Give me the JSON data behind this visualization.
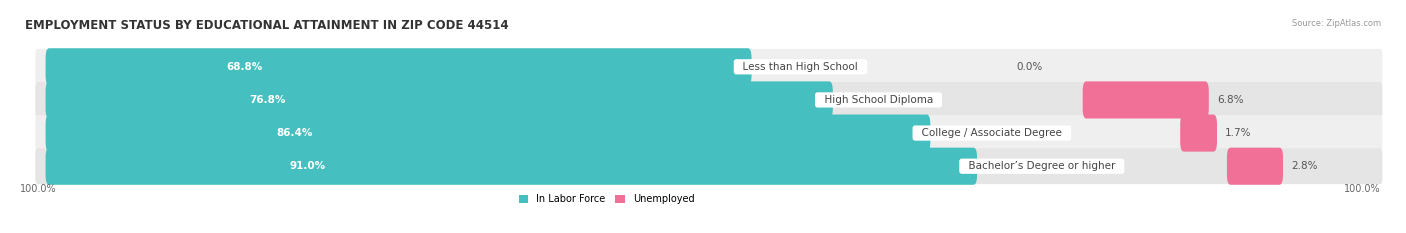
{
  "title": "EMPLOYMENT STATUS BY EDUCATIONAL ATTAINMENT IN ZIP CODE 44514",
  "source": "Source: ZipAtlas.com",
  "categories": [
    "Less than High School",
    "High School Diploma",
    "College / Associate Degree",
    "Bachelor’s Degree or higher"
  ],
  "labor_force": [
    68.8,
    76.8,
    86.4,
    91.0
  ],
  "unemployed": [
    0.0,
    6.8,
    1.7,
    2.8
  ],
  "labor_force_color": "#45bfbf",
  "unemployed_color": "#f07098",
  "row_bg_color_odd": "#efefef",
  "row_bg_color_even": "#e5e5e5",
  "x_left_label": "100.0%",
  "x_right_label": "100.0%",
  "legend_labor": "In Labor Force",
  "legend_unemployed": "Unemployed",
  "title_fontsize": 8.5,
  "bar_label_fontsize": 7.5,
  "category_fontsize": 7.5,
  "axis_label_fontsize": 7
}
